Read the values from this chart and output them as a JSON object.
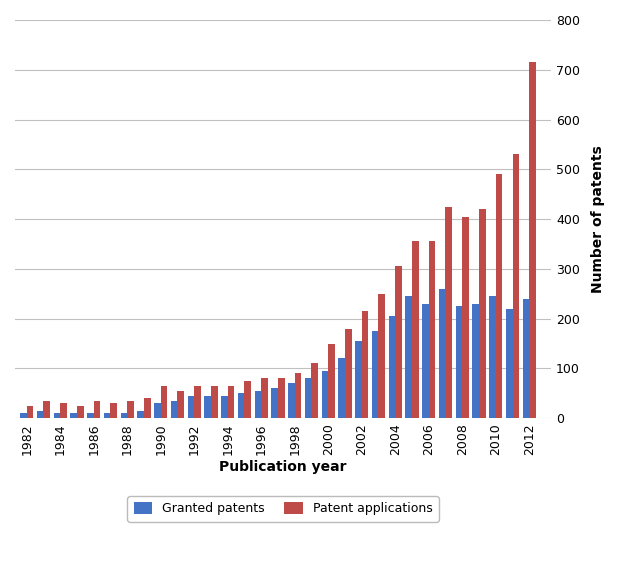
{
  "years": [
    1982,
    1983,
    1984,
    1985,
    1986,
    1987,
    1988,
    1989,
    1990,
    1991,
    1992,
    1993,
    1994,
    1995,
    1996,
    1997,
    1998,
    1999,
    2000,
    2001,
    2002,
    2003,
    2004,
    2005,
    2006,
    2007,
    2008,
    2009,
    2010,
    2011,
    2012
  ],
  "granted": [
    10,
    15,
    10,
    10,
    10,
    10,
    10,
    15,
    30,
    35,
    45,
    45,
    45,
    50,
    55,
    60,
    70,
    80,
    95,
    120,
    155,
    175,
    205,
    245,
    230,
    260,
    225,
    230,
    245,
    220,
    240
  ],
  "applications": [
    25,
    35,
    30,
    25,
    35,
    30,
    35,
    40,
    65,
    55,
    65,
    65,
    65,
    75,
    80,
    80,
    90,
    110,
    150,
    180,
    215,
    250,
    305,
    355,
    355,
    425,
    405,
    420,
    490,
    530,
    715
  ],
  "granted_color": "#4472C4",
  "applications_color": "#BE4B48",
  "xlabel": "Publication year",
  "ylabel": "Number of patents",
  "ylim": [
    0,
    800
  ],
  "yticks": [
    0,
    100,
    200,
    300,
    400,
    500,
    600,
    700,
    800
  ],
  "legend_granted": "Granted patents",
  "legend_applications": "Patent applications",
  "background_color": "#ffffff",
  "plot_background": "#ffffff",
  "grid_color": "#c0c0c0",
  "bar_width": 0.4
}
